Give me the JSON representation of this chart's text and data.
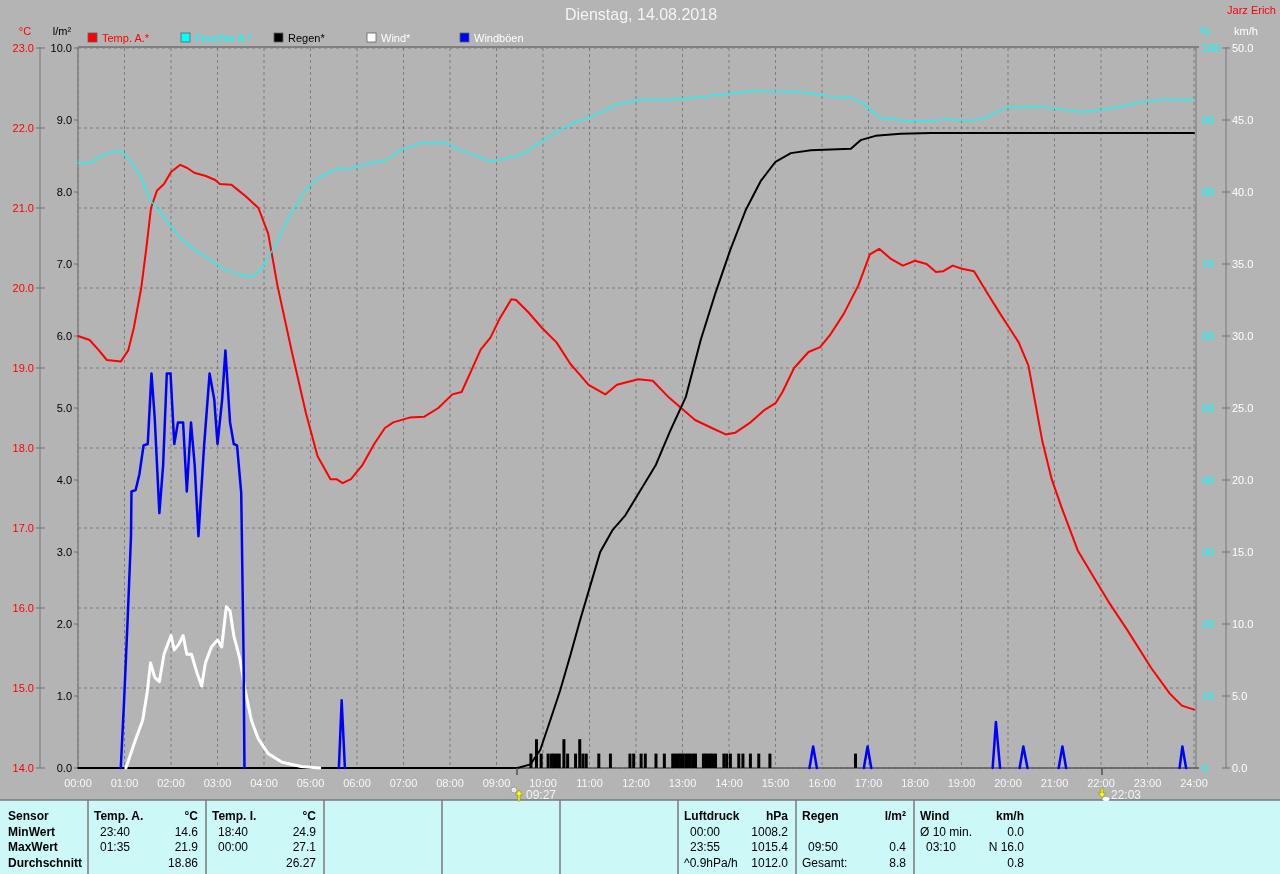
{
  "chart_data": [
    {
      "type": "line",
      "title": "Dienstag, 14.08.2018",
      "xlim": [
        0,
        24
      ],
      "xticks": [
        {
          "value": 0,
          "label": "00:00"
        },
        {
          "value": 1,
          "label": "01:00"
        },
        {
          "value": 2,
          "label": "02:00"
        },
        {
          "value": 3,
          "label": "03:00"
        },
        {
          "value": 4,
          "label": "04:00"
        },
        {
          "value": 5,
          "label": "05:00"
        },
        {
          "value": 6,
          "label": "06:00"
        },
        {
          "value": 7,
          "label": "07:00"
        },
        {
          "value": 8,
          "label": "08:00"
        },
        {
          "value": 9,
          "label": "09:00"
        },
        {
          "value": 10,
          "label": "10:00"
        },
        {
          "value": 11,
          "label": "11:00"
        },
        {
          "value": 12,
          "label": "12:00"
        },
        {
          "value": 13,
          "label": "13:00"
        },
        {
          "value": 14,
          "label": "14:00"
        },
        {
          "value": 15,
          "label": "15:00"
        },
        {
          "value": 16,
          "label": "16:00"
        },
        {
          "value": 17,
          "label": "17:00"
        },
        {
          "value": 18,
          "label": "18:00"
        },
        {
          "value": 19,
          "label": "19:00"
        },
        {
          "value": 20,
          "label": "20:00"
        },
        {
          "value": 21,
          "label": "21:00"
        },
        {
          "value": 22,
          "label": "22:00"
        },
        {
          "value": 23,
          "label": "23:00"
        },
        {
          "value": 24,
          "label": "24:00"
        }
      ],
      "ylabel": "°C",
      "ylim": [
        14,
        23
      ],
      "yticks": [
        {
          "value": 14,
          "label": "14.0"
        },
        {
          "value": 15,
          "label": "15.0"
        },
        {
          "value": 16,
          "label": "16.0"
        },
        {
          "value": 17,
          "label": "17.0"
        },
        {
          "value": 18,
          "label": "18.0"
        },
        {
          "value": 19,
          "label": "19.0"
        },
        {
          "value": 20,
          "label": "20.0"
        },
        {
          "value": 21,
          "label": "21.0"
        },
        {
          "value": 22,
          "label": "22.0"
        },
        {
          "value": 23,
          "label": "23.0"
        }
      ],
      "y2label": "l/m²",
      "y2lim": [
        0,
        10
      ],
      "y2ticks": [
        {
          "value": 0,
          "label": "0.0"
        },
        {
          "value": 1,
          "label": "1.0"
        },
        {
          "value": 2,
          "label": "2.0"
        },
        {
          "value": 3,
          "label": "3.0"
        },
        {
          "value": 4,
          "label": "4.0"
        },
        {
          "value": 5,
          "label": "5.0"
        },
        {
          "value": 6,
          "label": "6.0"
        },
        {
          "value": 7,
          "label": "7.0"
        },
        {
          "value": 8,
          "label": "8.0"
        },
        {
          "value": 9,
          "label": "9.0"
        },
        {
          "value": 10,
          "label": "10.0"
        }
      ],
      "grid": true,
      "legend": "top left",
      "series": [
        {
          "name": "Temp. A.*",
          "color": "#ff0000",
          "x": [
            0,
            0.25,
            0.45,
            0.62,
            0.92,
            1.08,
            1.2,
            1.36,
            1.47,
            1.57,
            1.7,
            1.85,
            2.0,
            2.2,
            2.35,
            2.5,
            2.75,
            2.95,
            3.05,
            3.3,
            3.45,
            3.6,
            3.88,
            4.09,
            4.29,
            4.6,
            4.9,
            5.15,
            5.43,
            5.56,
            5.69,
            5.87,
            6.12,
            6.37,
            6.6,
            6.78,
            7.13,
            7.44,
            7.75,
            8.05,
            8.25,
            8.46,
            8.66,
            8.87,
            9.07,
            9.32,
            9.42,
            9.68,
            9.98,
            10.29,
            10.59,
            10.8,
            10.98,
            11.34,
            11.59,
            12.05,
            12.36,
            12.71,
            13.27,
            13.63,
            13.93,
            14.13,
            14.44,
            14.75,
            15.0,
            15.15,
            15.4,
            15.71,
            15.96,
            16.17,
            16.47,
            16.78,
            17.03,
            17.23,
            17.49,
            17.74,
            18.0,
            18.25,
            18.45,
            18.61,
            18.81,
            19.01,
            19.27,
            19.52,
            19.83,
            20.03,
            20.23,
            20.44,
            20.74,
            20.94,
            21.15,
            21.5,
            21.86,
            22.16,
            22.57,
            23.08,
            23.48,
            23.74,
            24.0
          ],
          "values": [
            19.4,
            19.35,
            19.22,
            19.1,
            19.08,
            19.22,
            19.5,
            20.0,
            20.5,
            21.0,
            21.22,
            21.3,
            21.45,
            21.54,
            21.5,
            21.44,
            21.4,
            21.35,
            21.3,
            21.29,
            21.22,
            21.15,
            21.0,
            20.68,
            20.03,
            19.2,
            18.44,
            17.9,
            17.61,
            17.61,
            17.56,
            17.61,
            17.79,
            18.05,
            18.25,
            18.32,
            18.38,
            18.39,
            18.5,
            18.67,
            18.7,
            18.97,
            19.23,
            19.38,
            19.62,
            19.86,
            19.85,
            19.7,
            19.5,
            19.32,
            19.05,
            18.91,
            18.79,
            18.67,
            18.79,
            18.86,
            18.84,
            18.63,
            18.35,
            18.25,
            18.17,
            18.19,
            18.31,
            18.47,
            18.56,
            18.7,
            19.0,
            19.2,
            19.26,
            19.41,
            19.68,
            20.03,
            20.42,
            20.49,
            20.36,
            20.28,
            20.34,
            20.3,
            20.2,
            20.21,
            20.28,
            20.24,
            20.21,
            19.97,
            19.68,
            19.5,
            19.32,
            19.03,
            18.08,
            17.61,
            17.26,
            16.72,
            16.37,
            16.08,
            15.72,
            15.25,
            14.93,
            14.78,
            14.73
          ]
        },
        {
          "name": "Regen*",
          "color": "#000000",
          "axis": "y2",
          "x": [
            0,
            9.45,
            9.73,
            9.94,
            10.16,
            10.37,
            10.59,
            10.8,
            11.02,
            11.23,
            11.49,
            11.77,
            12.1,
            12.42,
            12.74,
            13.07,
            13.39,
            13.71,
            14.03,
            14.36,
            14.68,
            15.0,
            15.33,
            15.76,
            16.62,
            16.83,
            17.15,
            17.69,
            18.34,
            24.0
          ],
          "values": [
            0,
            0,
            0.05,
            0.25,
            0.67,
            1.08,
            1.57,
            2.06,
            2.54,
            3.0,
            3.3,
            3.51,
            3.86,
            4.2,
            4.69,
            5.15,
            5.94,
            6.6,
            7.2,
            7.75,
            8.15,
            8.42,
            8.54,
            8.58,
            8.6,
            8.72,
            8.78,
            8.81,
            8.82,
            8.82
          ]
        },
        {
          "type": "bar",
          "color": "#000000",
          "axis": "y2",
          "x": [
            9.74,
            9.86,
            9.96,
            10.11,
            10.18,
            10.23,
            10.29,
            10.35,
            10.45,
            10.53,
            10.7,
            10.79,
            10.86,
            10.93,
            11.2,
            11.45,
            11.87,
            11.95,
            12.11,
            12.2,
            12.43,
            12.61,
            12.79,
            12.85,
            12.91,
            12.96,
            13.01,
            13.07,
            13.12,
            13.17,
            13.23,
            13.28,
            13.45,
            13.5,
            13.55,
            13.6,
            13.65,
            13.71,
            13.89,
            13.95,
            14.03,
            14.21,
            14.3,
            14.46,
            14.64,
            14.88,
            16.72
          ],
          "values": [
            0.2,
            0.4,
            0.2,
            0.2,
            0.2,
            0.2,
            0.2,
            0.2,
            0.4,
            0.2,
            0.2,
            0.4,
            0.2,
            0.2,
            0.2,
            0.2,
            0.2,
            0.2,
            0.2,
            0.2,
            0.2,
            0.2,
            0.2,
            0.2,
            0.2,
            0.2,
            0.2,
            0.2,
            0.2,
            0.2,
            0.2,
            0.2,
            0.2,
            0.2,
            0.2,
            0.2,
            0.2,
            0.2,
            0.2,
            0.2,
            0.2,
            0.2,
            0.2,
            0.2,
            0.2,
            0.2,
            0.2
          ]
        }
      ],
      "annotations": [
        "Jarz Erich",
        "09:27",
        "22:03",
        "Sensor",
        "MinWert",
        "MaxWert",
        "Durchschnitt",
        "Temp. A.",
        "°C",
        "23:40",
        "14.6",
        "01:35",
        "21.9",
        "18.86",
        "Temp. I.",
        "°C",
        "18:40",
        "24.9",
        "00:00",
        "27.1",
        "26.27",
        "Luftdruck",
        "hPa",
        "00:00",
        "1008.2",
        "23:55",
        "1015.4",
        "^0.9hPa/h",
        "1012.0",
        "Regen",
        "l/m²",
        "09:50",
        "0.4",
        "Gesamt:",
        "8.8",
        "Wind",
        "km/h",
        "Ø 10 min.",
        "0.0",
        "03:10",
        "N 16.0",
        "0.8"
      ]
    },
    {
      "type": "line",
      "xlim": [
        0,
        24
      ],
      "tick_labels": "y",
      "ylabel": "%",
      "ylim": [
        0,
        100
      ],
      "yticks": [
        0,
        10,
        20,
        30,
        40,
        50,
        60,
        70,
        80,
        90,
        100
      ],
      "y2label": "km/h",
      "y2lim": [
        0,
        50
      ],
      "y2ticks": [
        {
          "value": 0,
          "label": "0.0"
        },
        {
          "value": 5,
          "label": "5.0"
        },
        {
          "value": 10,
          "label": "10.0"
        },
        {
          "value": 15,
          "label": "15.0"
        },
        {
          "value": 20,
          "label": "20.0"
        },
        {
          "value": 25,
          "label": "25.0"
        },
        {
          "value": 30,
          "label": "30.0"
        },
        {
          "value": 35,
          "label": "35.0"
        },
        {
          "value": 40,
          "label": "40.0"
        },
        {
          "value": 45,
          "label": "45.0"
        },
        {
          "value": 50,
          "label": "50.0"
        }
      ],
      "legend": "top left",
      "series": [
        {
          "name": "Feuchte A.*",
          "color": "#00ffff",
          "x": [
            0,
            0.26,
            0.47,
            0.73,
            0.95,
            1.12,
            1.33,
            1.55,
            1.77,
            1.98,
            2.2,
            2.52,
            2.84,
            3.16,
            3.49,
            3.75,
            3.96,
            4.24,
            4.56,
            4.89,
            5.21,
            5.53,
            5.85,
            6.28,
            6.61,
            6.93,
            7.36,
            7.9,
            8.22,
            8.55,
            8.87,
            9.19,
            9.51,
            9.84,
            10.27,
            10.7,
            11.13,
            11.56,
            12.1,
            12.74,
            13.39,
            13.93,
            14.46,
            15.11,
            15.54,
            15.86,
            16.19,
            16.62,
            16.87,
            17.1,
            17.3,
            17.8,
            18.44,
            18.66,
            19.2,
            19.52,
            19.95,
            20.49,
            21.03,
            21.57,
            22.0,
            22.43,
            22.86,
            23.29,
            24.0
          ],
          "values": [
            84.0,
            84.0,
            84.9,
            85.6,
            85.6,
            84.4,
            82.4,
            78.9,
            77.2,
            75.4,
            73.6,
            71.9,
            70.6,
            69.2,
            68.5,
            68.2,
            69.4,
            72.6,
            76.8,
            80.3,
            82.1,
            83.1,
            83.3,
            84.0,
            84.4,
            85.8,
            86.8,
            86.9,
            85.8,
            85.1,
            84.2,
            84.7,
            85.1,
            86.5,
            88.3,
            89.7,
            90.7,
            92.1,
            92.8,
            92.8,
            93.2,
            93.6,
            94.0,
            93.9,
            93.9,
            93.6,
            93.3,
            93.1,
            92.4,
            91.0,
            90.2,
            89.9,
            89.9,
            90.1,
            89.9,
            90.3,
            91.7,
            91.9,
            91.6,
            91.1,
            91.4,
            91.9,
            92.5,
            92.8,
            92.8
          ]
        },
        {
          "name": "Wind*",
          "color": "#ffffff",
          "axis": "y2",
          "x": [
            1.03,
            1.24,
            1.39,
            1.49,
            1.56,
            1.65,
            1.75,
            1.85,
            2.0,
            2.07,
            2.17,
            2.26,
            2.34,
            2.44,
            2.56,
            2.66,
            2.74,
            2.87,
            3.0,
            3.09,
            3.19,
            3.27,
            3.35,
            3.48,
            3.6,
            3.73,
            3.88,
            4.09,
            4.39,
            4.8,
            5.2
          ],
          "values": [
            0,
            2.0,
            3.3,
            5.3,
            7.3,
            6.3,
            6.0,
            7.9,
            9.2,
            8.2,
            8.6,
            9.2,
            7.9,
            7.9,
            6.6,
            5.7,
            7.3,
            8.4,
            8.9,
            8.4,
            11.2,
            10.9,
            9.2,
            7.6,
            5.3,
            3.3,
            2.0,
            1.0,
            0.4,
            0.1,
            0
          ]
        },
        {
          "name": "Windböen",
          "color": "#0000ff",
          "axis": "y2",
          "x": [
            0.92,
            0.99,
            1.07,
            1.14,
            1.15,
            1.24,
            1.32,
            1.41,
            1.5,
            1.58,
            1.65,
            1.75,
            1.83,
            1.91,
            1.99,
            2.07,
            2.15,
            2.26,
            2.34,
            2.43,
            2.51,
            2.59,
            2.71,
            2.83,
            2.93,
            3.0,
            3.1,
            3.17,
            3.27,
            3.35,
            3.42,
            3.51,
            3.56,
            3.58,
            4.5,
            5.61,
            5.67,
            5.74,
            10,
            15.73,
            15.81,
            15.89,
            16.4,
            16.9,
            16.98,
            17.06,
            18,
            19.67,
            19.74,
            19.83,
            20.1,
            20.25,
            20.33,
            20.42,
            20.8,
            21.09,
            21.17,
            21.25,
            22.5,
            23.69,
            23.75,
            23.83
          ],
          "values": [
            0,
            4.6,
            10.5,
            16.1,
            19.2,
            19.3,
            20.4,
            22.4,
            22.5,
            27.4,
            24.3,
            17.7,
            21.0,
            27.4,
            27.4,
            22.5,
            24.0,
            24.0,
            19.2,
            24.0,
            21.0,
            16.1,
            22.3,
            27.4,
            25.6,
            22.5,
            25.6,
            29.0,
            24.0,
            22.5,
            22.4,
            19.1,
            7.9,
            0,
            null,
            0,
            4.7,
            0,
            null,
            0,
            1.5,
            0,
            null,
            0,
            1.5,
            0,
            null,
            0,
            3.2,
            0,
            null,
            0,
            1.5,
            0,
            null,
            0,
            1.5,
            0,
            null,
            0,
            1.5,
            0
          ]
        }
      ]
    }
  ]
}
